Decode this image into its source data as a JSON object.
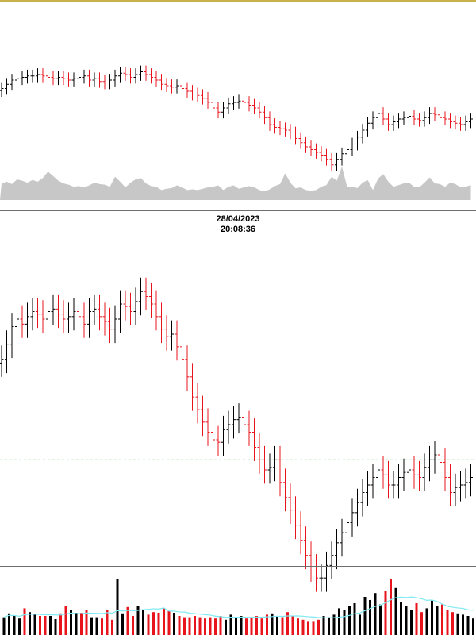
{
  "header": {
    "date": "28/04/2023",
    "time": "20:08:36"
  },
  "colors": {
    "up": "#000000",
    "down": "#e8141c",
    "volume_area": "#b4b4b4",
    "reference_line": "#2eaa2e",
    "moving_average": "#7fe9f2",
    "divider": "#6e6e6e",
    "top_border": "#c9b24a"
  },
  "chart_data": [
    {
      "type": "ohlc",
      "title": "",
      "xlabel": "",
      "ylabel": "",
      "ylim": [
        74,
        86
      ],
      "volume_ylim": [
        0,
        1
      ],
      "close": [
        84.2,
        84.5,
        84.8,
        84.9,
        85.0,
        85.1,
        85.1,
        85.2,
        85.1,
        85.0,
        84.9,
        85.0,
        84.9,
        84.8,
        84.9,
        85.0,
        85.1,
        84.8,
        84.9,
        84.7,
        84.6,
        84.8,
        85.1,
        85.3,
        85.2,
        85.0,
        85.2,
        85.4,
        85.2,
        85.0,
        84.8,
        84.5,
        84.4,
        84.3,
        84.4,
        84.2,
        84.0,
        83.8,
        83.7,
        83.5,
        83.2,
        82.8,
        82.5,
        82.8,
        83.1,
        83.2,
        83.3,
        83.2,
        83.0,
        82.8,
        82.5,
        82.1,
        81.6,
        81.4,
        81.3,
        81.2,
        81.0,
        80.6,
        80.3,
        80.0,
        79.8,
        79.6,
        79.4,
        79.1,
        78.7,
        79.1,
        79.5,
        79.8,
        80.2,
        80.7,
        81.2,
        81.7,
        82.1,
        82.4,
        82.0,
        81.6,
        81.8,
        82.0,
        82.1,
        82.2,
        82.0,
        81.9,
        82.1,
        82.4,
        82.3,
        82.1,
        82.0,
        81.8,
        81.7,
        81.6,
        81.8,
        82.0
      ],
      "volume": [
        0.5,
        0.55,
        0.48,
        0.62,
        0.58,
        0.52,
        0.6,
        0.55,
        0.66,
        0.85,
        0.72,
        0.58,
        0.5,
        0.46,
        0.4,
        0.42,
        0.38,
        0.44,
        0.52,
        0.48,
        0.46,
        0.4,
        0.7,
        0.55,
        0.38,
        0.52,
        0.62,
        0.66,
        0.5,
        0.42,
        0.4,
        0.3,
        0.34,
        0.36,
        0.44,
        0.38,
        0.3,
        0.32,
        0.3,
        0.34,
        0.38,
        0.4,
        0.44,
        0.3,
        0.4,
        0.44,
        0.34,
        0.38,
        0.42,
        0.38,
        0.3,
        0.26,
        0.32,
        0.42,
        0.48,
        0.8,
        0.52,
        0.35,
        0.38,
        0.3,
        0.28,
        0.3,
        0.4,
        0.45,
        0.7,
        0.58,
        1.0,
        0.4,
        0.4,
        0.36,
        0.52,
        0.6,
        0.3,
        0.64,
        0.78,
        0.55,
        0.4,
        0.45,
        0.5,
        0.52,
        0.4,
        0.38,
        0.52,
        0.68,
        0.5,
        0.48,
        0.4,
        0.52,
        0.48,
        0.38,
        0.4,
        0.45
      ],
      "panel": "top"
    },
    {
      "type": "ohlc",
      "title": "",
      "xlabel": "",
      "ylabel": "",
      "ylim": [
        74,
        86
      ],
      "reference_line": 78.6,
      "volume_ylim": [
        0,
        1
      ],
      "close": [
        82.6,
        83.2,
        83.9,
        84.2,
        84.0,
        84.3,
        84.5,
        84.4,
        84.2,
        84.5,
        84.6,
        84.4,
        84.2,
        84.3,
        84.5,
        84.3,
        84.0,
        84.5,
        84.6,
        84.3,
        84.1,
        83.8,
        84.2,
        84.8,
        84.7,
        84.5,
        84.9,
        85.3,
        85.1,
        84.8,
        84.3,
        83.8,
        83.5,
        83.6,
        83.1,
        82.6,
        81.9,
        81.1,
        80.6,
        80.1,
        79.7,
        79.4,
        79.3,
        79.8,
        80.0,
        80.2,
        80.3,
        80.0,
        79.7,
        79.1,
        78.6,
        78.2,
        78.3,
        78.6,
        77.7,
        77.1,
        76.6,
        76.0,
        75.4,
        74.8,
        74.3,
        73.9,
        73.9,
        74.4,
        74.8,
        75.3,
        75.7,
        76.1,
        76.5,
        76.9,
        77.3,
        77.6,
        77.9,
        78.2,
        78.0,
        77.6,
        77.6,
        77.9,
        78.1,
        78.2,
        78.0,
        77.9,
        78.3,
        78.6,
        78.8,
        78.5,
        77.9,
        77.3,
        77.5,
        77.6,
        77.7,
        77.9
      ],
      "volume": [
        0.28,
        0.34,
        0.3,
        0.26,
        0.42,
        0.36,
        0.32,
        0.3,
        0.3,
        0.3,
        0.25,
        0.34,
        0.46,
        0.4,
        0.35,
        0.35,
        0.4,
        0.28,
        0.28,
        0.26,
        0.4,
        0.24,
        0.88,
        0.34,
        0.44,
        0.3,
        0.45,
        0.4,
        0.32,
        0.36,
        0.35,
        0.42,
        0.38,
        0.35,
        0.3,
        0.28,
        0.28,
        0.3,
        0.28,
        0.26,
        0.28,
        0.26,
        0.3,
        0.24,
        0.32,
        0.28,
        0.3,
        0.26,
        0.28,
        0.3,
        0.26,
        0.32,
        0.34,
        0.3,
        0.28,
        0.36,
        0.3,
        0.26,
        0.24,
        0.22,
        0.22,
        0.24,
        0.3,
        0.28,
        0.32,
        0.42,
        0.4,
        0.45,
        0.5,
        0.32,
        0.6,
        0.55,
        0.66,
        0.48,
        0.7,
        0.88,
        0.74,
        0.52,
        0.45,
        0.4,
        0.5,
        0.36,
        0.42,
        0.54,
        0.46,
        0.48,
        0.4,
        0.36,
        0.34,
        0.32,
        0.3,
        0.26
      ],
      "panel": "bottom"
    }
  ]
}
